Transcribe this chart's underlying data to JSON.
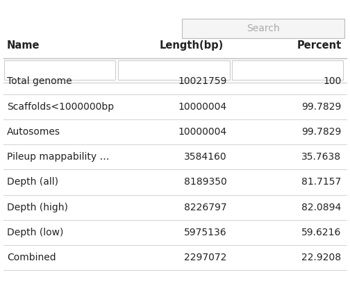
{
  "search_placeholder": "Search",
  "columns": [
    "Name",
    "Length(bp)",
    "Percent"
  ],
  "rows": [
    [
      "Total genome",
      "10021759",
      "100"
    ],
    [
      "Scaffolds<1000000bp",
      "10000004",
      "99.7829"
    ],
    [
      "Autosomes",
      "10000004",
      "99.7829"
    ],
    [
      "Pileup mappability …",
      "3584160",
      "35.7638"
    ],
    [
      "Depth (all)",
      "8189350",
      "81.7157"
    ],
    [
      "Depth (high)",
      "8226797",
      "82.0894"
    ],
    [
      "Depth (low)",
      "5975136",
      "59.6216"
    ],
    [
      "Combined",
      "2297072",
      "22.9208"
    ]
  ],
  "bg_color": "#ffffff",
  "line_color": "#cccccc",
  "text_color": "#222222",
  "header_font_size": 10.5,
  "row_font_size": 10,
  "search_box_color": "#f5f5f5",
  "search_border_color": "#bbbbbb",
  "search_text_color": "#aaaaaa",
  "filter_box_color": "#ffffff",
  "filter_border_color": "#cccccc"
}
